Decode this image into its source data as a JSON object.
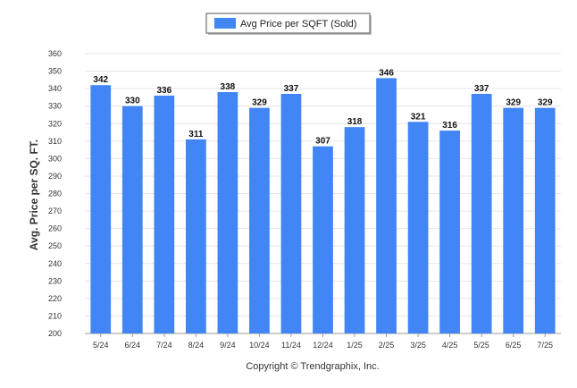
{
  "chart_data": {
    "type": "bar",
    "categories": [
      "5/24",
      "6/24",
      "7/24",
      "8/24",
      "9/24",
      "10/24",
      "11/24",
      "12/24",
      "1/25",
      "2/25",
      "3/25",
      "4/25",
      "5/25",
      "6/25",
      "7/25"
    ],
    "series": [
      {
        "name": "Avg Price per SQFT (Sold)",
        "values": [
          342,
          330,
          336,
          311,
          338,
          329,
          337,
          307,
          318,
          346,
          321,
          316,
          337,
          329,
          329
        ],
        "color": "#4285f4"
      }
    ],
    "ylabel": "Avg. Price per SQ. FT.",
    "xlabel": "",
    "ylim": [
      200,
      360
    ],
    "yticks": [
      200,
      210,
      220,
      230,
      240,
      250,
      260,
      270,
      280,
      290,
      300,
      310,
      320,
      330,
      340,
      350,
      360
    ],
    "grid": true,
    "legend": "top-center",
    "data_labels": true
  },
  "footer": {
    "copyright": "Copyright © Trendgraphix, Inc."
  }
}
